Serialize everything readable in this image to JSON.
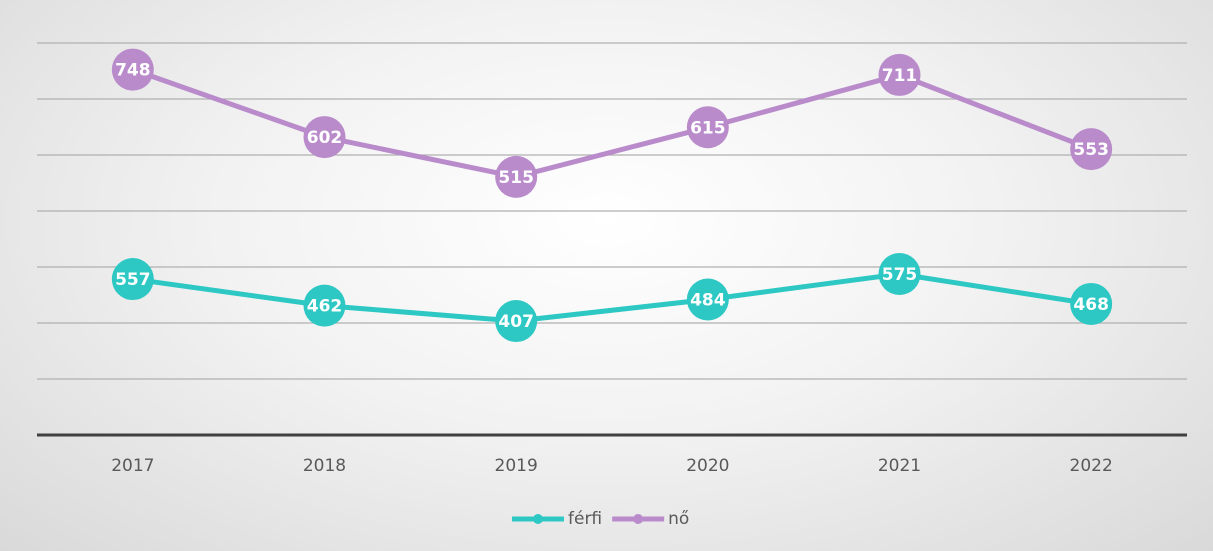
{
  "chart_data": {
    "type": "line",
    "stacked": true,
    "categories": [
      "2017",
      "2018",
      "2019",
      "2020",
      "2021",
      "2022"
    ],
    "series": [
      {
        "name": "férfi",
        "color": "#2ec8c4",
        "values": [
          557,
          462,
          407,
          484,
          575,
          468
        ]
      },
      {
        "name": "nő",
        "color": "#b98bcb",
        "values": [
          748,
          602,
          515,
          615,
          711,
          553
        ]
      }
    ],
    "ylim": [
      0,
      1400
    ],
    "yticks": [
      0,
      200,
      400,
      600,
      800,
      1000,
      1200,
      1400
    ],
    "grid": true,
    "legend": "bottom"
  }
}
